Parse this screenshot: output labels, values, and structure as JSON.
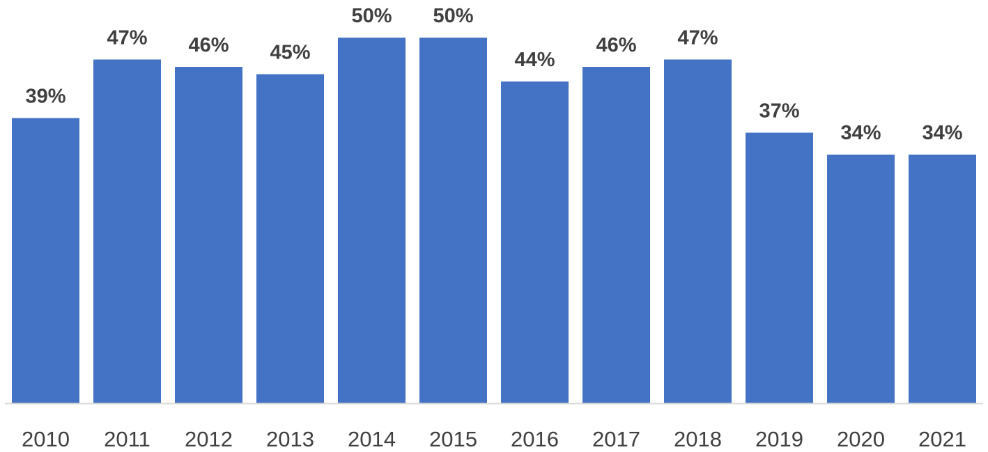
{
  "chart_data": {
    "type": "bar",
    "title": "",
    "xlabel": "",
    "ylabel": "",
    "categories": [
      "2010",
      "2011",
      "2012",
      "2013",
      "2014",
      "2015",
      "2016",
      "2017",
      "2018",
      "2019",
      "2020",
      "2021"
    ],
    "values": [
      39,
      47,
      46,
      45,
      50,
      50,
      44,
      46,
      47,
      37,
      34,
      34
    ],
    "value_labels": [
      "39%",
      "47%",
      "46%",
      "45%",
      "50%",
      "50%",
      "44%",
      "46%",
      "47%",
      "37%",
      "34%",
      "34%"
    ],
    "unit": "%",
    "ylim": [
      0,
      55
    ],
    "grid": false,
    "legend": "none",
    "bar_color": "#4472C4",
    "axis_color": "#D9D9D9",
    "text_color": "#404040"
  }
}
